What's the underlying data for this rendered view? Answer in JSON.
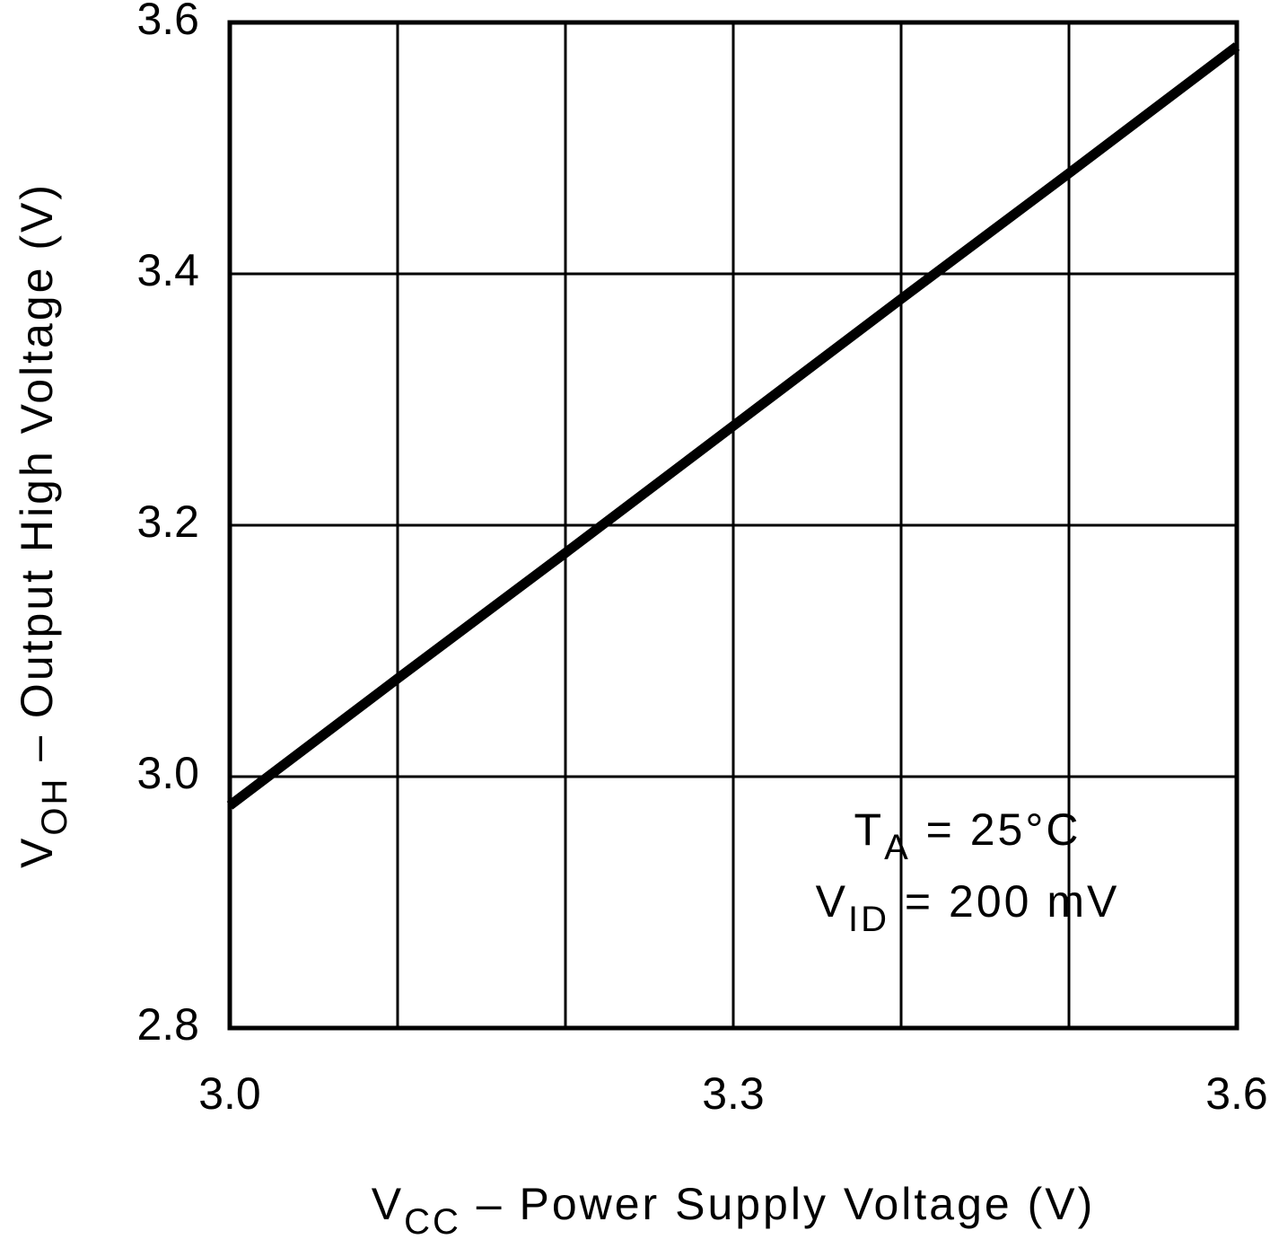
{
  "chart_data": {
    "type": "line",
    "x_label": {
      "main": "V",
      "sub": "CC",
      "rest": " – Power Supply Voltage (V)"
    },
    "y_label": {
      "main": "V",
      "sub": "OH",
      "rest": " – Output High Voltage (V)"
    },
    "annotations": [
      {
        "main": "T",
        "sub": "A",
        "rest": " = 25°C"
      },
      {
        "main": "V",
        "sub": "ID",
        "rest": " = 200 mV"
      }
    ],
    "x": [
      3.0,
      3.1,
      3.2,
      3.3,
      3.4,
      3.5,
      3.6
    ],
    "series": [
      {
        "color": "#000000",
        "values": [
          2.977,
          3.078,
          3.178,
          3.279,
          3.38,
          3.48,
          3.581
        ]
      }
    ],
    "xlim": [
      3.0,
      3.6
    ],
    "xticks": [
      {
        "value": 3,
        "label": "3.0"
      },
      {
        "value": 3.1,
        "label": null
      },
      {
        "value": 3.2,
        "label": null
      },
      3.3,
      {
        "value": 3.4,
        "label": null
      },
      {
        "value": 3.5,
        "label": null
      },
      3.6
    ],
    "ylim": [
      2.8,
      3.6
    ],
    "yticks": [
      2.8,
      {
        "value": 3,
        "label": "3.0"
      },
      3.2,
      3.4,
      3.6
    ],
    "grid": true
  }
}
